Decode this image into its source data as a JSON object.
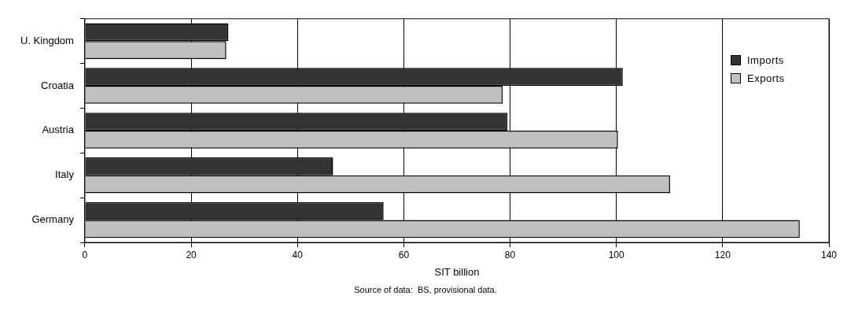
{
  "chart_data": {
    "type": "bar",
    "orientation": "horizontal",
    "xlabel": "SIT billion",
    "annotations": [
      "Source of data:  BS, provisional data."
    ],
    "categories": [
      "U. Kingdom",
      "Croatia",
      "Austria",
      "Italy",
      "Germany"
    ],
    "series": [
      {
        "name": "Imports",
        "color": "#333333",
        "values": [
          27.0,
          101.2,
          79.5,
          46.7,
          56.2
        ]
      },
      {
        "name": "Exports",
        "color": "#c0c0c0",
        "values": [
          26.6,
          78.6,
          100.3,
          110.1,
          134.5
        ]
      }
    ],
    "xlim": [
      0,
      140
    ],
    "xticks": [
      0,
      20,
      40,
      60,
      80,
      100,
      120,
      140
    ],
    "grid": "x",
    "legend": "top right"
  }
}
